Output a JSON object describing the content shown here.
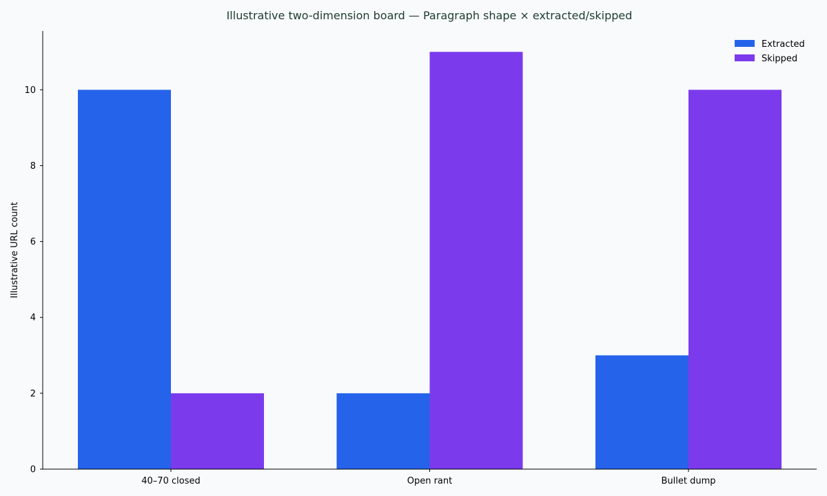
{
  "chart_data": {
    "type": "bar",
    "title": "Illustrative two-dimension board — Paragraph shape × extracted/skipped",
    "xlabel": "",
    "ylabel": "Illustrative URL count",
    "categories": [
      "40–70 closed",
      "Open rant",
      "Bullet dump"
    ],
    "series": [
      {
        "name": "Extracted",
        "values": [
          10,
          2,
          3
        ],
        "color": "#2563eb"
      },
      {
        "name": "Skipped",
        "values": [
          2,
          11,
          10
        ],
        "color": "#7c3aed"
      }
    ],
    "ylim": [
      0,
      11.55
    ],
    "yticks": [
      0,
      2,
      4,
      6,
      8,
      10
    ],
    "grid": false,
    "legend_position": "top-right"
  },
  "colors": {
    "background": "#f8fafc",
    "title": "#1f3b2e",
    "axis": "#000000"
  }
}
